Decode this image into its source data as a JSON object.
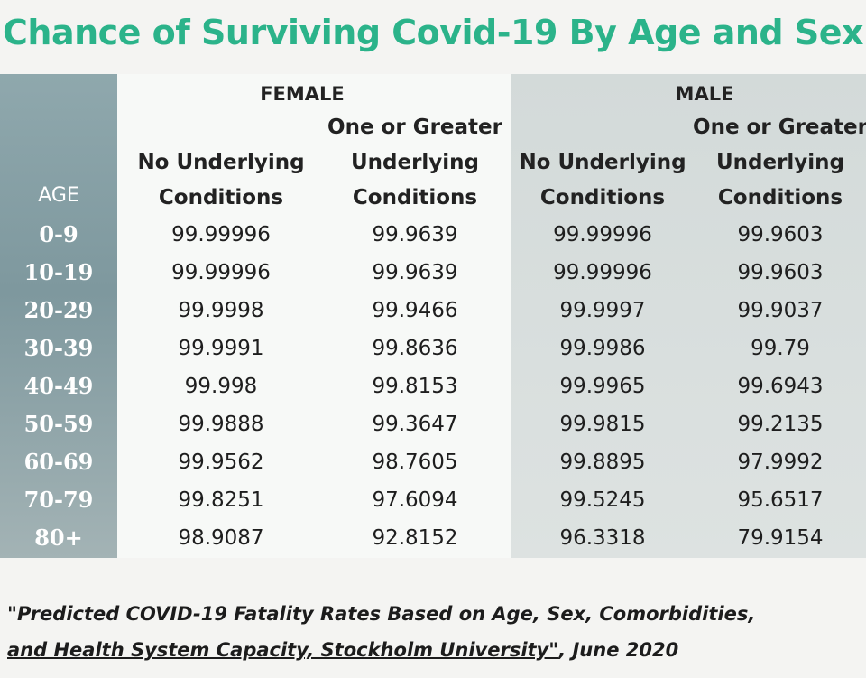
{
  "title": "Chance of Surviving Covid-19 By Age and Sex",
  "chart_data": {
    "type": "table",
    "title": "Chance of Surviving Covid-19 By Age and Sex",
    "row_header": "AGE",
    "groups": [
      {
        "name": "FEMALE",
        "columns": [
          [
            "No Underlying",
            "Conditions"
          ],
          [
            "One or Greater",
            "Underlying",
            "Conditions"
          ]
        ]
      },
      {
        "name": "MALE",
        "columns": [
          [
            "No Underlying",
            "Conditions"
          ],
          [
            "One or Greater",
            "Underlying",
            "Conditions"
          ]
        ]
      }
    ],
    "rows": [
      {
        "age": "0-9",
        "values": [
          "99.99996",
          "99.9639",
          "99.99996",
          "99.9603"
        ]
      },
      {
        "age": "10-19",
        "values": [
          "99.99996",
          "99.9639",
          "99.99996",
          "99.9603"
        ]
      },
      {
        "age": "20-29",
        "values": [
          "99.9998",
          "99.9466",
          "99.9997",
          "99.9037"
        ]
      },
      {
        "age": "30-39",
        "values": [
          "99.9991",
          "99.8636",
          "99.9986",
          "99.79"
        ]
      },
      {
        "age": "40-49",
        "values": [
          "99.998",
          "99.8153",
          "99.9965",
          "99.6943"
        ]
      },
      {
        "age": "50-59",
        "values": [
          "99.9888",
          "99.3647",
          "99.9815",
          "99.2135"
        ]
      },
      {
        "age": "60-69",
        "values": [
          "99.9562",
          "98.7605",
          "99.8895",
          "97.9992"
        ]
      },
      {
        "age": "70-79",
        "values": [
          "99.8251",
          "97.6094",
          "99.5245",
          "95.6517"
        ]
      },
      {
        "age": "80+",
        "values": [
          "98.9087",
          "92.8152",
          "96.3318",
          "79.9154"
        ]
      }
    ]
  },
  "citation": {
    "line1": "\"Predicted COVID-19 Fatality Rates Based on Age, Sex, Comorbidities,",
    "line2": "and Health System Capacity,  Stockholm University\"",
    "line2_suffix": ", June 2020"
  },
  "colors": {
    "title": "#2bb38a",
    "age_column": "#8fa8ad",
    "male_panel": "#d7dddc"
  }
}
